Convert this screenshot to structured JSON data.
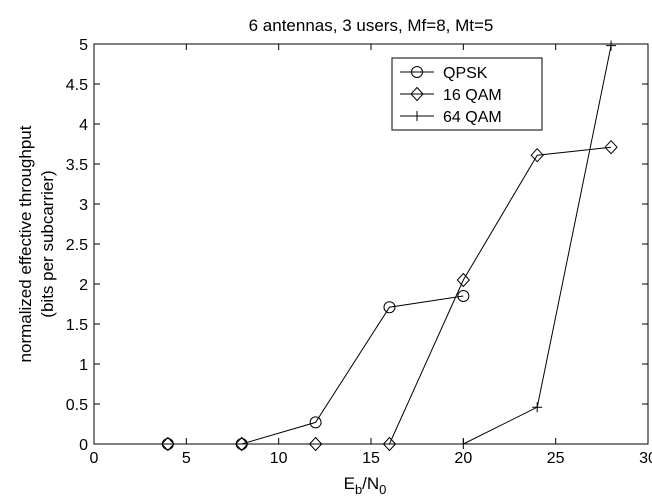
{
  "chart_data": {
    "type": "line",
    "title": "6 antennas, 3 users, Mf=8, Mt=5",
    "xlabel": {
      "main": "E",
      "sub1": "b",
      "mid": "/N",
      "sub2": "0"
    },
    "ylabel": [
      "normalized effective throughput",
      "(bits per subcarrier)"
    ],
    "xlim": [
      0,
      30
    ],
    "ylim": [
      0,
      5
    ],
    "xticks": [
      0,
      5,
      10,
      15,
      20,
      25,
      30
    ],
    "yticks": [
      0,
      0.5,
      1,
      1.5,
      2,
      2.5,
      3,
      3.5,
      4,
      4.5,
      5
    ],
    "grid": false,
    "legend_position": "top-right",
    "series": [
      {
        "name": "QPSK",
        "marker": "circle",
        "color": "#000000",
        "x": [
          4,
          8,
          12,
          16,
          20
        ],
        "y": [
          0,
          0,
          0.27,
          1.71,
          1.85
        ]
      },
      {
        "name": "16 QAM",
        "marker": "diamond",
        "color": "#000000",
        "x": [
          4,
          8,
          12,
          16,
          20,
          24,
          28
        ],
        "y": [
          0,
          0,
          0,
          0,
          2.05,
          3.61,
          3.71
        ]
      },
      {
        "name": "64 QAM",
        "marker": "plus",
        "color": "#000000",
        "x": [
          20,
          24,
          28
        ],
        "y": [
          0,
          0.46,
          4.98
        ]
      }
    ]
  }
}
